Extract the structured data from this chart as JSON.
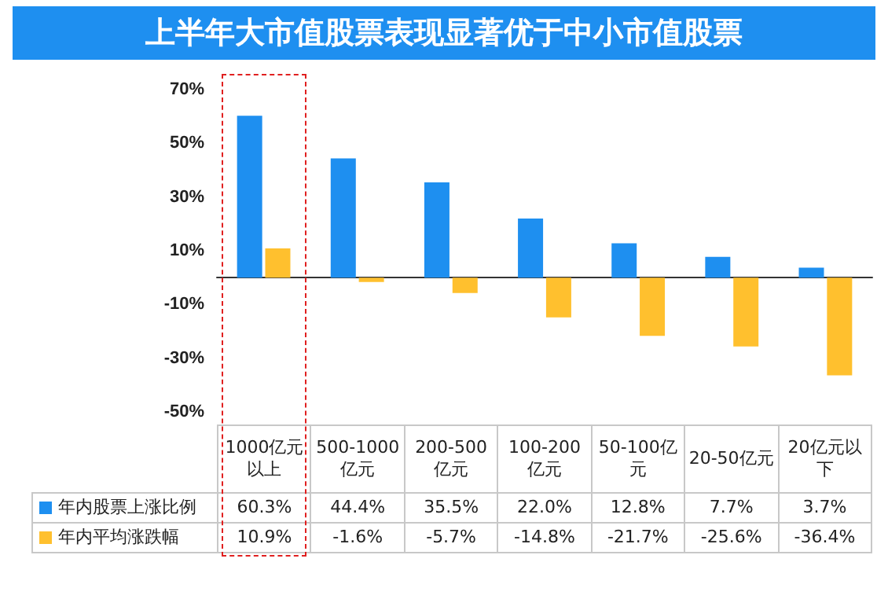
{
  "chart_data": {
    "type": "bar",
    "title": "上半年大市值股票表现显著优于中小市值股票",
    "categories": [
      "1000亿元以上",
      "500-1000亿元",
      "200-500亿元",
      "100-200亿元",
      "50-100亿元",
      "20-50亿元",
      "20亿元以下"
    ],
    "series": [
      {
        "name": "年内股票上涨比例",
        "color": "#1e8ff0",
        "values": [
          60.3,
          44.4,
          35.5,
          22.0,
          12.8,
          7.7,
          3.7
        ],
        "value_labels": [
          "60.3%",
          "44.4%",
          "35.5%",
          "22.0%",
          "12.8%",
          "7.7%",
          "3.7%"
        ]
      },
      {
        "name": "年内平均涨跌幅",
        "color": "#ffc02e",
        "values": [
          10.9,
          -1.6,
          -5.7,
          -14.8,
          -21.7,
          -25.6,
          -36.4
        ],
        "value_labels": [
          "10.9%",
          "-1.6%",
          "-5.7%",
          "-14.8%",
          "-21.7%",
          "-25.6%",
          "-36.4%"
        ]
      }
    ],
    "ylim": [
      -50,
      70
    ],
    "yticks": [
      {
        "value": -50,
        "label": "-50%"
      },
      {
        "value": -30,
        "label": "-30%"
      },
      {
        "value": -10,
        "label": "-10%"
      },
      {
        "value": 10,
        "label": "10%"
      },
      {
        "value": 30,
        "label": "30%"
      },
      {
        "value": 50,
        "label": "50%"
      },
      {
        "value": 70,
        "label": "70%"
      }
    ],
    "grid": false,
    "legend": "bottom left"
  }
}
